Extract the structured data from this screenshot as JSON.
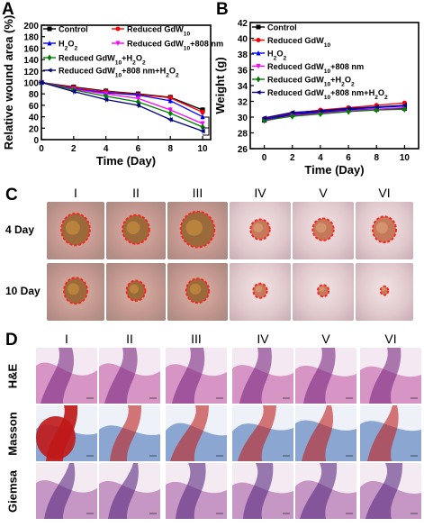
{
  "panels": {
    "a": "A",
    "b": "B",
    "c": "C",
    "d": "D"
  },
  "chart_data": [
    {
      "type": "line",
      "panel": "A",
      "xlabel": "Time (Day)",
      "ylabel": "Relative wound area (%)",
      "xlim": [
        0,
        10.5
      ],
      "ylim": [
        0,
        200
      ],
      "xticks": [
        0,
        2,
        4,
        6,
        8,
        10
      ],
      "yticks": [
        0,
        20,
        40,
        60,
        80,
        100,
        120,
        140,
        160,
        180,
        200
      ],
      "x": [
        0,
        2,
        4,
        6,
        8,
        10
      ],
      "legend_position": "top",
      "series": [
        {
          "name": "Control",
          "color": "#000000",
          "marker": "square",
          "values": [
            100,
            92,
            85,
            80,
            74,
            52
          ]
        },
        {
          "name": "Reduced GdW10",
          "color": "#ff0000",
          "marker": "circle",
          "values": [
            100,
            91,
            84,
            79,
            73,
            48
          ]
        },
        {
          "name": "H2O2",
          "color": "#0000ff",
          "marker": "triangle",
          "values": [
            100,
            89,
            82,
            78,
            68,
            40
          ]
        },
        {
          "name": "Reduced GdW10+808 nm",
          "color": "#ff00ff",
          "marker": "triangle-down",
          "values": [
            100,
            88,
            80,
            72,
            52,
            28
          ]
        },
        {
          "name": "Reduced GdW10+H2O2",
          "color": "#008000",
          "marker": "diamond",
          "values": [
            100,
            87,
            76,
            66,
            46,
            22
          ]
        },
        {
          "name": "Reduced GdW10+808 nm+H2O2",
          "color": "#000080",
          "marker": "triangle-left",
          "values": [
            100,
            84,
            70,
            60,
            35,
            15
          ]
        }
      ]
    },
    {
      "type": "line",
      "panel": "B",
      "xlabel": "Time (Day)",
      "ylabel": "Weight (g)",
      "xlim": [
        -1,
        11
      ],
      "ylim": [
        26,
        42
      ],
      "xticks": [
        0,
        2,
        4,
        6,
        8,
        10
      ],
      "yticks": [
        26,
        28,
        30,
        32,
        34,
        36,
        38,
        40,
        42
      ],
      "x": [
        0,
        2,
        4,
        6,
        8,
        10
      ],
      "legend_position": "top-left",
      "series": [
        {
          "name": "Control",
          "color": "#000000",
          "marker": "square",
          "values": [
            29.6,
            30.3,
            30.6,
            30.9,
            31.0,
            31.1
          ]
        },
        {
          "name": "Reduced GdW10",
          "color": "#ff0000",
          "marker": "circle",
          "values": [
            29.8,
            30.5,
            30.9,
            31.2,
            31.5,
            31.8
          ]
        },
        {
          "name": "H2O2",
          "color": "#0000ff",
          "marker": "triangle",
          "values": [
            29.7,
            30.4,
            30.7,
            31.0,
            31.2,
            31.4
          ]
        },
        {
          "name": "Reduced GdW10+808 nm",
          "color": "#ff00ff",
          "marker": "triangle-down",
          "values": [
            29.5,
            30.2,
            30.5,
            30.8,
            31.0,
            31.2
          ]
        },
        {
          "name": "Reduced GdW10+H2O2",
          "color": "#008000",
          "marker": "diamond",
          "values": [
            29.6,
            30.1,
            30.4,
            30.7,
            30.9,
            31.0
          ]
        },
        {
          "name": "Reduced GdW10+808 nm+H2O2",
          "color": "#000080",
          "marker": "triangle-left",
          "values": [
            29.9,
            30.6,
            30.8,
            31.1,
            31.3,
            31.5
          ]
        }
      ]
    }
  ],
  "photos": {
    "columns": [
      "I",
      "II",
      "III",
      "IV",
      "V",
      "VI"
    ],
    "rows": [
      "4 Day",
      "10 Day"
    ],
    "wound_size_4day": [
      0.55,
      0.5,
      0.62,
      0.35,
      0.38,
      0.45
    ],
    "wound_size_10day": [
      0.45,
      0.35,
      0.42,
      0.25,
      0.2,
      0.15
    ]
  },
  "histology": {
    "columns": [
      "I",
      "II",
      "III",
      "IV",
      "V",
      "VI"
    ],
    "rows": [
      "H&E",
      "Masson",
      "Giemsa"
    ]
  }
}
